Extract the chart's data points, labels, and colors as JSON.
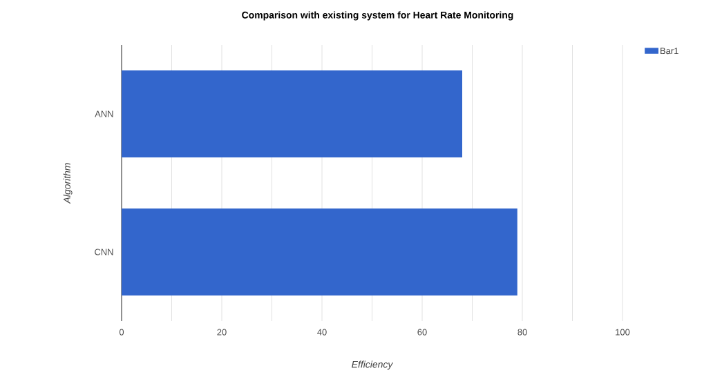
{
  "chart_data": {
    "type": "bar",
    "orientation": "horizontal",
    "title": "Comparison with existing system for Heart Rate Monitoring",
    "xlabel": "Efficiency",
    "ylabel": "Algorithm",
    "categories": [
      "ANN",
      "CNN"
    ],
    "series": [
      {
        "name": "Bar1",
        "color": "#3366cc",
        "values": [
          68,
          79
        ]
      }
    ],
    "xlim": [
      0,
      100
    ],
    "xticks": [
      0,
      {
        "value": 10,
        "label": null
      },
      20,
      {
        "value": 30,
        "label": null
      },
      40,
      {
        "value": 50,
        "label": null
      },
      60,
      {
        "value": 70,
        "label": null
      },
      80,
      {
        "value": 90,
        "label": null
      },
      100
    ],
    "grid": "x",
    "legend": "top right"
  }
}
